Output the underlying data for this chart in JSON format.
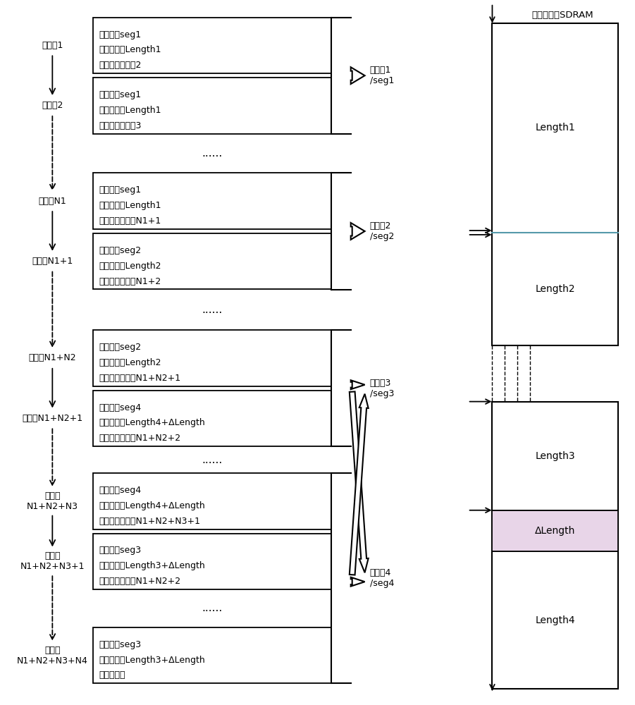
{
  "bg_color": "#ffffff",
  "sdram_title": "波形查找表SDRAM",
  "desc_labels": [
    "描述字1",
    "描述字2",
    "描述字N1",
    "描述字N1+1",
    "描述字N1+N2",
    "描述字N1+N2+1",
    "描述字\nN1+N2+N3",
    "描述字\nN1+N2+N3+1",
    "描述字\nN1+N2+N3+N4"
  ],
  "box_configs": [
    {
      "lines": [
        "源地址：seg1",
        "传输长度：Length1",
        "链接至：描述字2"
      ]
    },
    {
      "lines": [
        "源地址：seg1",
        "传输长度：Length1",
        "链接至：描述字3"
      ]
    },
    {
      "lines": [
        "源地址：seg1",
        "传输长度：Length1",
        "链接至：描述字N1+1"
      ]
    },
    {
      "lines": [
        "源地址：seg2",
        "传输长度：Length2",
        "链接至：描述字N1+2"
      ]
    },
    {
      "lines": [
        "源地址：seg2",
        "传输长度：Length2",
        "链接至：描述字N1+N2+1"
      ]
    },
    {
      "lines": [
        "源地址：seg4",
        "传输长度：Length4+ΔLength",
        "链接至：描述字N1+N2+2"
      ]
    },
    {
      "lines": [
        "源地址：seg4",
        "传输长度：Length4+ΔLength",
        "链接至：描述字N1+N2+N3+1"
      ]
    },
    {
      "lines": [
        "源地址：seg3",
        "传输长度：Length3+ΔLength",
        "链接至：描述字N1+N2+2"
      ]
    },
    {
      "lines": [
        "源地址：seg3",
        "传输长度：Length3+ΔLength",
        "链接至：？"
      ]
    }
  ],
  "seq_labels": [
    "序列段1\n/seg1",
    "序列段2\n/seg2",
    "序列段3\n/seg3",
    "序列段4\n/seg4"
  ],
  "sdram_seg_labels": [
    "Length1",
    "Length2",
    "Length3",
    "ΔLength",
    "Length4"
  ],
  "sdram_seg_colors": [
    "#ffffff",
    "#ffffff",
    "#ffffff",
    "#e8d5e8",
    "#ffffff"
  ],
  "font_size_box": 9,
  "font_size_label": 9,
  "font_size_sdram": 9.5,
  "font_size_title": 9.5
}
